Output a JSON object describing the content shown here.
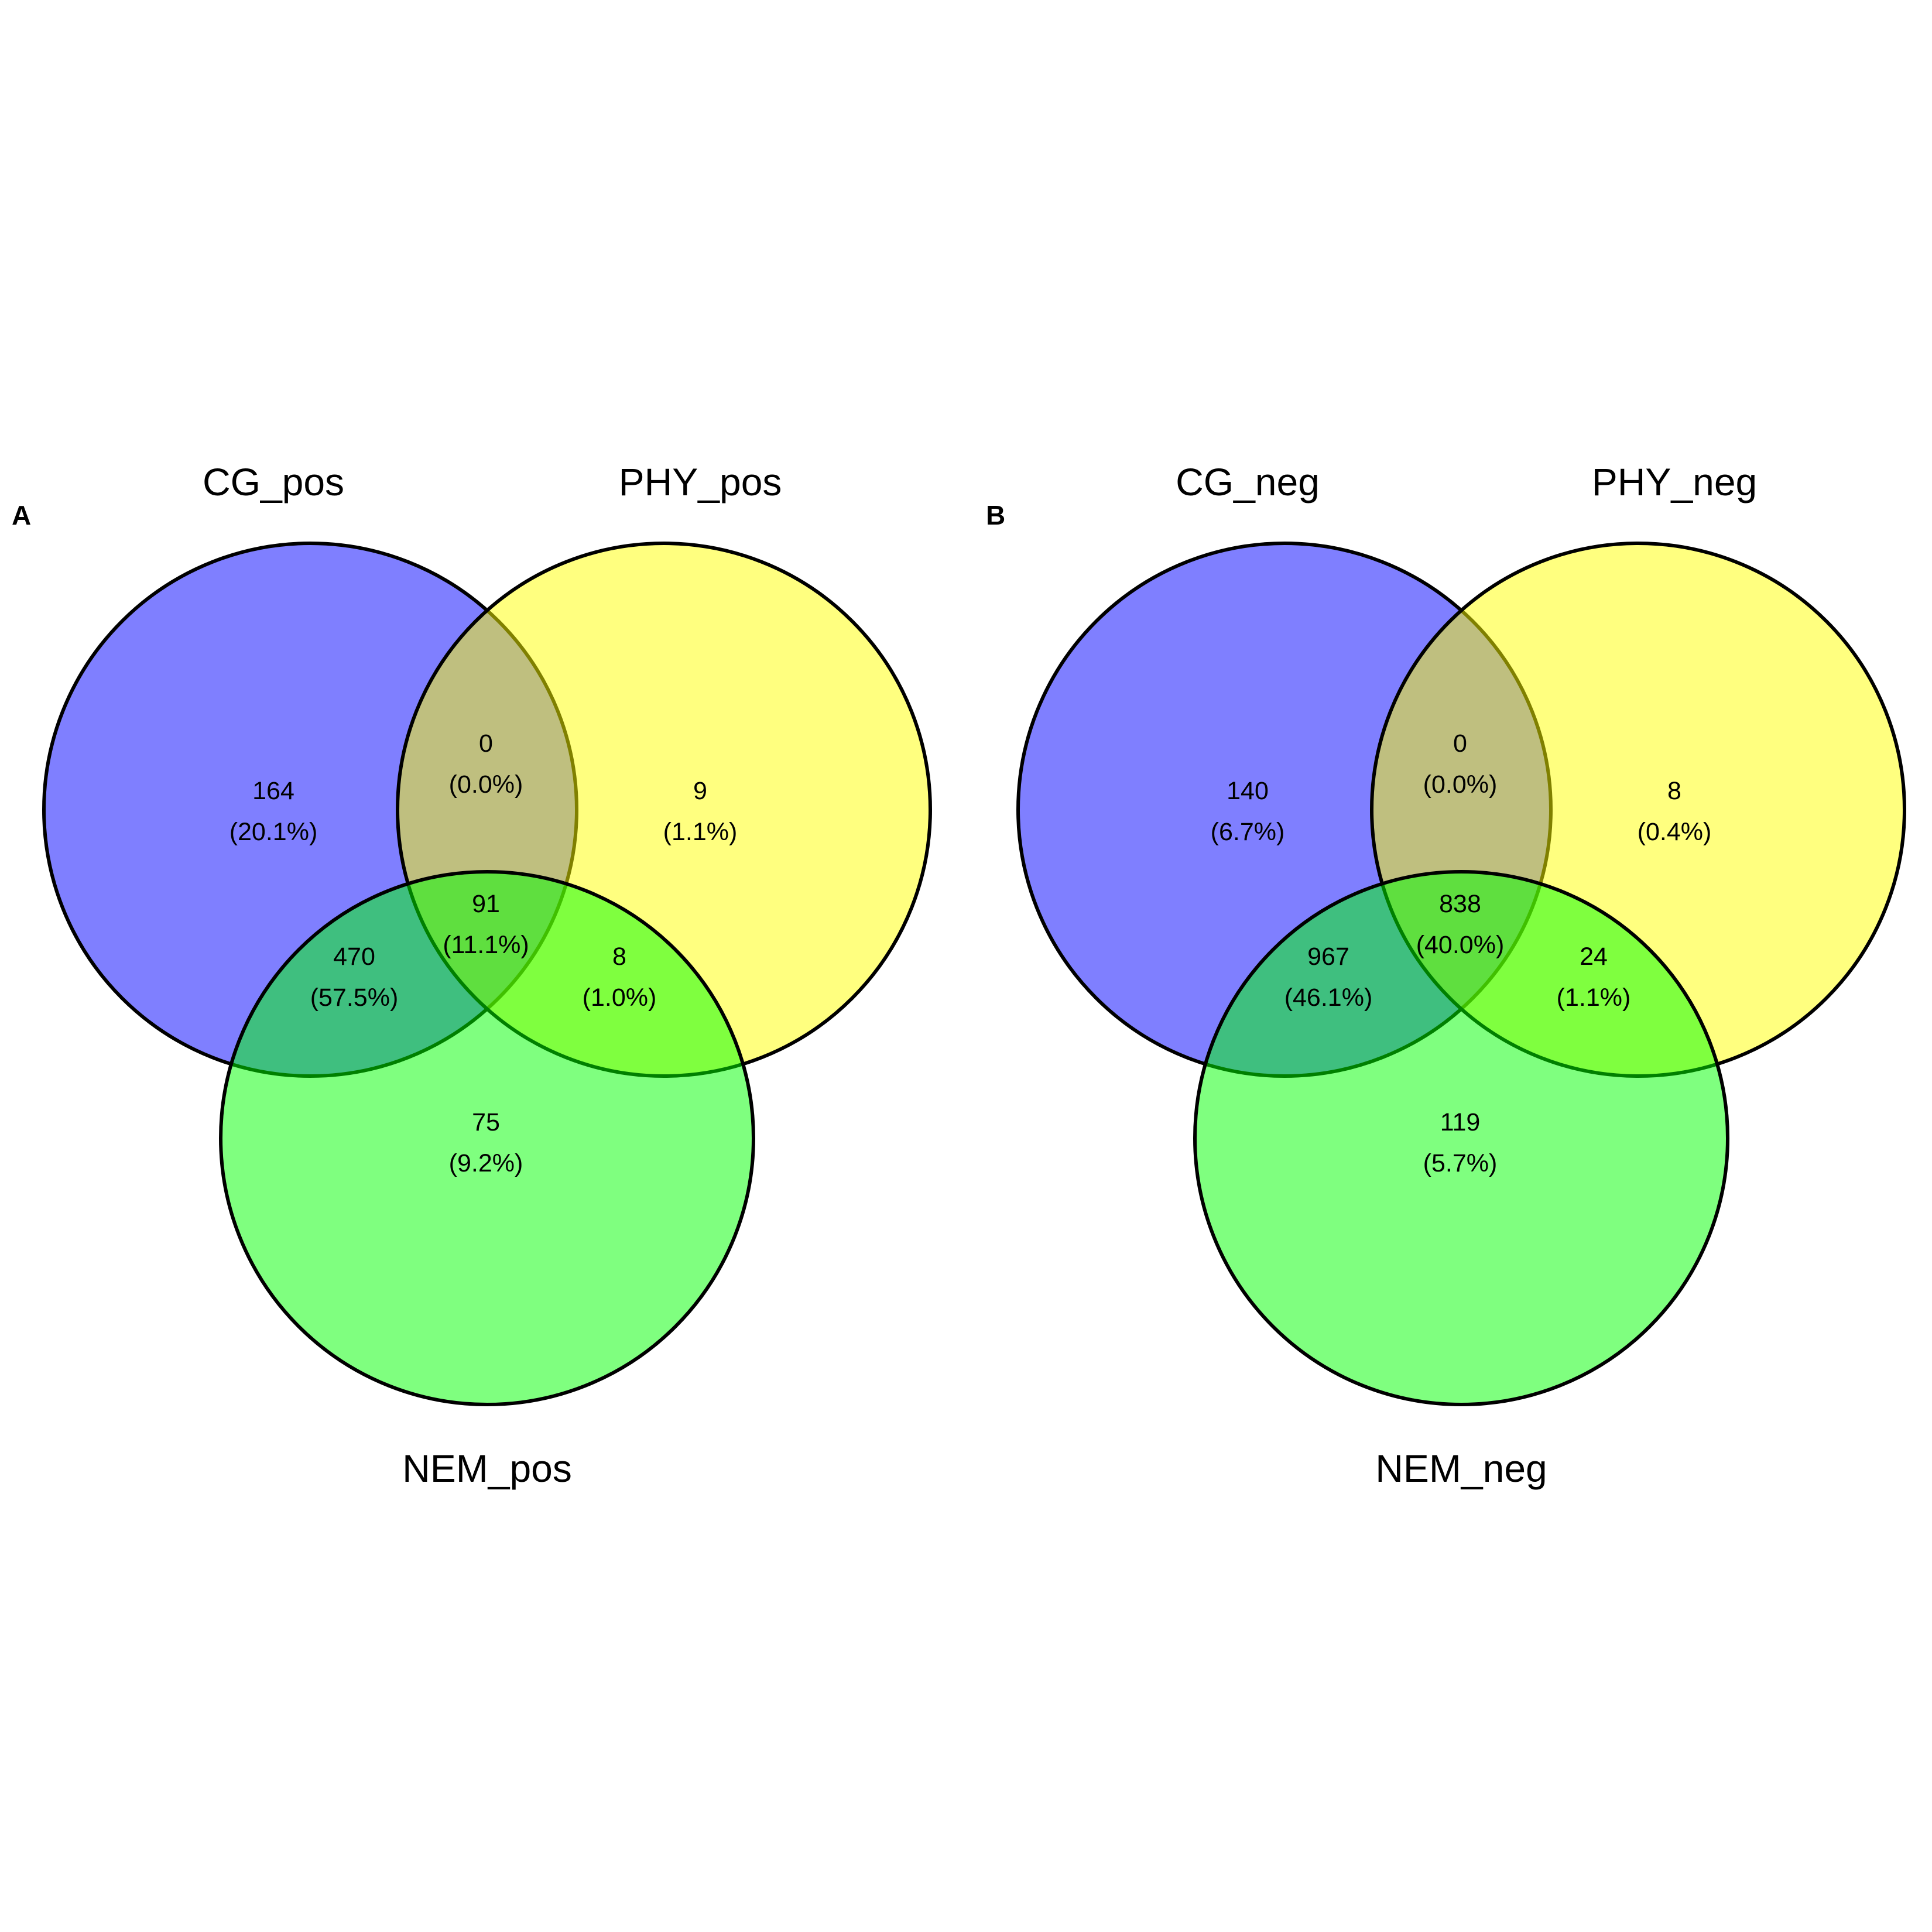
{
  "figure": {
    "panels": [
      {
        "letter": "A",
        "sets": [
          {
            "name": "CG_pos",
            "color": "#0000FF"
          },
          {
            "name": "PHY_pos",
            "color": "#FFFF00"
          },
          {
            "name": "NEM_pos",
            "color": "#00FF00"
          }
        ],
        "regions": [
          {
            "id": "cg_only",
            "count": "164",
            "percent": "(20.1%)"
          },
          {
            "id": "cg_phy",
            "count": "0",
            "percent": "(0.0%)"
          },
          {
            "id": "phy_only",
            "count": "9",
            "percent": "(1.1%)"
          },
          {
            "id": "cg_nem",
            "count": "470",
            "percent": "(57.5%)"
          },
          {
            "id": "all_three",
            "count": "91",
            "percent": "(11.1%)"
          },
          {
            "id": "phy_nem",
            "count": "8",
            "percent": "(1.0%)"
          },
          {
            "id": "nem_only",
            "count": "75",
            "percent": "(9.2%)"
          }
        ]
      },
      {
        "letter": "B",
        "sets": [
          {
            "name": "CG_neg",
            "color": "#0000FF"
          },
          {
            "name": "PHY_neg",
            "color": "#FFFF00"
          },
          {
            "name": "NEM_neg",
            "color": "#00FF00"
          }
        ],
        "regions": [
          {
            "id": "cg_only",
            "count": "140",
            "percent": "(6.7%)"
          },
          {
            "id": "cg_phy",
            "count": "0",
            "percent": "(0.0%)"
          },
          {
            "id": "phy_only",
            "count": "8",
            "percent": "(0.4%)"
          },
          {
            "id": "cg_nem",
            "count": "967",
            "percent": "(46.1%)"
          },
          {
            "id": "all_three",
            "count": "838",
            "percent": "(40.0%)"
          },
          {
            "id": "phy_nem",
            "count": "24",
            "percent": "(1.1%)"
          },
          {
            "id": "nem_only",
            "count": "119",
            "percent": "(5.7%)"
          }
        ]
      }
    ]
  }
}
